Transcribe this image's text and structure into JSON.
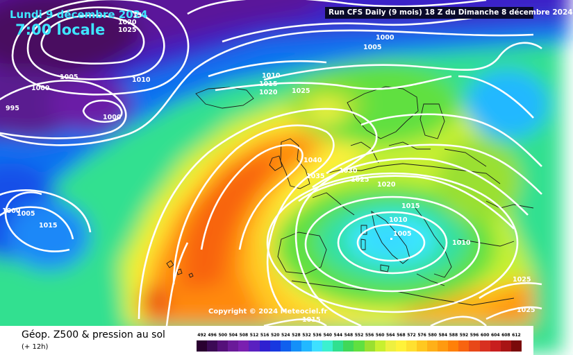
{
  "header": {
    "date": "Lundi 9 décembre 2024",
    "time": "7:00 locale",
    "run": "Run CFS Daily (9 mois) 18 Z du Dimanche 8 décembre 2024"
  },
  "copyright": "Copyright © 2024 Meteociel.fr",
  "footer": {
    "title": "Géop. Z500 & pression au sol",
    "subtitle": "(+ 12h)"
  },
  "isobar_labels": [
    "15",
    "1020",
    "1025",
    "1000",
    "1005",
    "1005",
    "1010",
    "1000",
    "995",
    "1000",
    "1010",
    "1015",
    "1020",
    "1025",
    "1040",
    "1035",
    "1030",
    "1025",
    "1020",
    "1015",
    "1010",
    "1005",
    "1010",
    "1000",
    "1005",
    "1015",
    "1025",
    "1025",
    "1015"
  ],
  "scale": {
    "labels": [
      "492",
      "496",
      "500",
      "504",
      "508",
      "512",
      "516",
      "520",
      "524",
      "528",
      "532",
      "536",
      "540",
      "544",
      "548",
      "552",
      "556",
      "560",
      "564",
      "568",
      "572",
      "576",
      "580",
      "584",
      "588",
      "592",
      "596",
      "600",
      "604",
      "608",
      "612"
    ],
    "colors": [
      "#2a0030",
      "#3c0a55",
      "#55107a",
      "#6a1a99",
      "#7a1fb0",
      "#5a20c0",
      "#3020d0",
      "#1838e0",
      "#1060ee",
      "#1490f8",
      "#22b8ff",
      "#3ee0ff",
      "#3cf0d0",
      "#30e090",
      "#40d858",
      "#60e040",
      "#9ae030",
      "#c8f030",
      "#eef040",
      "#fff23a",
      "#ffe030",
      "#ffc820",
      "#ffb018",
      "#ff9a10",
      "#ff8008",
      "#f86410",
      "#e84818",
      "#d83020",
      "#c81e1e",
      "#a81414",
      "#7a0a0a"
    ]
  },
  "colors": {
    "header_text": "#3ee6ff",
    "run_box_bg": "#0a0a2a"
  }
}
